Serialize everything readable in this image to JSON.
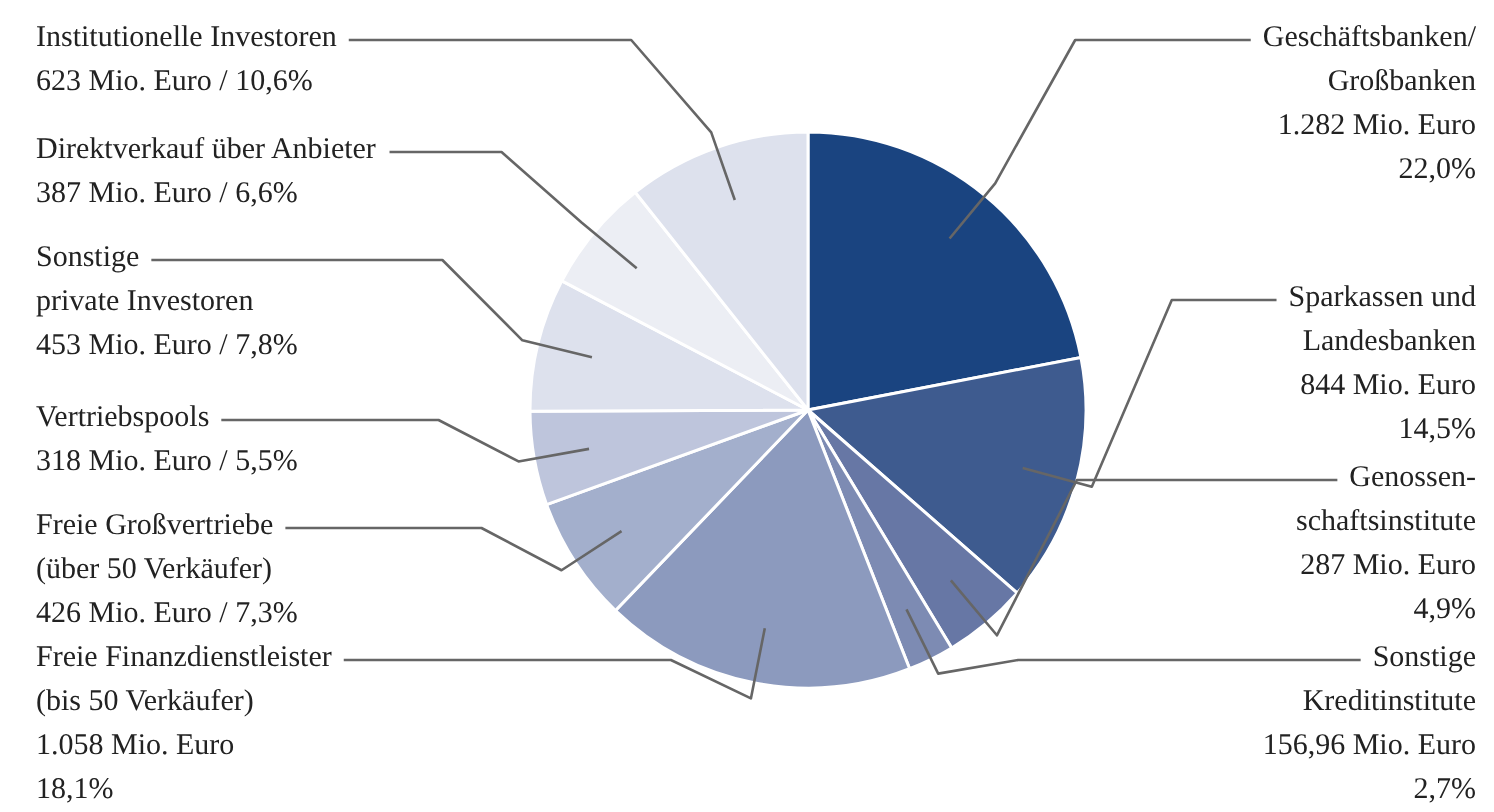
{
  "chart_data": {
    "type": "pie",
    "categories": [
      "Geschäftsbanken/\nGroßbanken",
      "Sparkassen und\nLandesbanken",
      "Genossen-\nschaftsinstitute",
      "Sonstige\nKreditinstitute",
      "Freie Finanzdienstleister\n(bis 50 Verkäufer)",
      "Freie Großvertriebe\n(über 50 Verkäufer)",
      "Vertriebspools",
      "Sonstige\nprivate Investoren",
      "Direktverkauf über Anbieter",
      "Institutionelle Investoren"
    ],
    "values": [
      1282,
      844,
      287,
      156.96,
      1058,
      426,
      318,
      453,
      387,
      623
    ],
    "value_labels": [
      "1.282 Mio. Euro\n22,0%",
      "844 Mio. Euro\n14,5%",
      "287 Mio. Euro\n4,9%",
      "156,96 Mio. Euro\n2,7%",
      "1.058 Mio. Euro\n18,1%",
      "426 Mio. Euro / 7,3%",
      "318 Mio. Euro / 5,5%",
      "453 Mio. Euro / 7,8%",
      "387 Mio. Euro / 6,6%",
      "623 Mio. Euro / 10,6%"
    ],
    "colors": [
      "#1a4480",
      "#3e5b8f",
      "#6777a5",
      "#7d8bb3",
      "#8c9abe",
      "#a3afcc",
      "#bec5dc",
      "#dde1ed",
      "#eceef4",
      "#dde1ed"
    ]
  }
}
